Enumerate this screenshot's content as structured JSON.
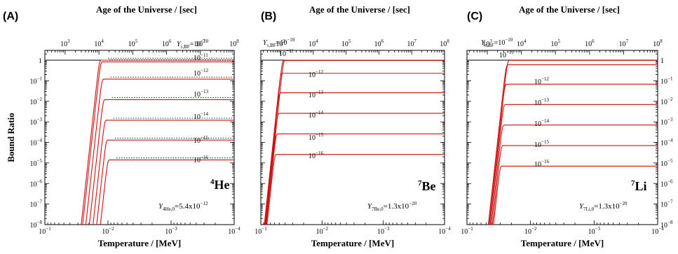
{
  "chart_data": [
    {
      "type": "line",
      "panel": "(A)",
      "nucleus_mass": "4",
      "nucleus_symbol": "He",
      "annotation": {
        "symbol": "Y",
        "subscript": "4He,0",
        "value": "=5.4x10",
        "exponent": "−12"
      },
      "xlabel": "Temperature / [MeV]",
      "x2label": "Age of the Universe / [sec]",
      "ylabel": "Bound Ratio",
      "xscale": "log",
      "xlim": [
        0.1,
        0.0001
      ],
      "yscale": "log",
      "ylim": [
        1e-08,
        3
      ],
      "x_ticks": [
        {
          "base": "10",
          "exp": "−1"
        },
        {
          "base": "10",
          "exp": "−2"
        },
        {
          "base": "10",
          "exp": "−3"
        },
        {
          "base": "10",
          "exp": "−4"
        }
      ],
      "y_ticks": [
        {
          "base": "1",
          "exp": ""
        },
        {
          "base": "10",
          "exp": "−1"
        },
        {
          "base": "10",
          "exp": "−2"
        },
        {
          "base": "10",
          "exp": "−3"
        },
        {
          "base": "10",
          "exp": "−4"
        },
        {
          "base": "10",
          "exp": "−5"
        },
        {
          "base": "10",
          "exp": "−6"
        },
        {
          "base": "10",
          "exp": "−7"
        },
        {
          "base": "10",
          "exp": "−8"
        }
      ],
      "x2_ticks": [
        {
          "base": "10",
          "exp": "3"
        },
        {
          "base": "10",
          "exp": "4"
        },
        {
          "base": "10",
          "exp": "5"
        },
        {
          "base": "10",
          "exp": "6"
        },
        {
          "base": "10",
          "exp": "7"
        },
        {
          "base": "10",
          "exp": "8"
        }
      ],
      "reference_line": 1,
      "dotted_lines": true,
      "series": [
        {
          "label": {
            "head": "Y",
            "sub": "τ,BF",
            "mid": "=10",
            "exp": "−10"
          },
          "onset_T": 0.0138,
          "plateau": 1.0
        },
        {
          "label": {
            "head": "",
            "sub": "",
            "mid": "10",
            "exp": "−11"
          },
          "onset_T": 0.0132,
          "plateau": 0.83
        },
        {
          "label": {
            "head": "",
            "sub": "",
            "mid": "10",
            "exp": "−12"
          },
          "onset_T": 0.0126,
          "plateau": 0.12
        },
        {
          "label": {
            "head": "",
            "sub": "",
            "mid": "10",
            "exp": "−13"
          },
          "onset_T": 0.012,
          "plateau": 0.012
        },
        {
          "label": {
            "head": "",
            "sub": "",
            "mid": "10",
            "exp": "−14"
          },
          "onset_T": 0.0114,
          "plateau": 0.0012
        },
        {
          "label": {
            "head": "",
            "sub": "",
            "mid": "10",
            "exp": "−15"
          },
          "onset_T": 0.0108,
          "plateau": 0.00013
        },
        {
          "label": {
            "head": "",
            "sub": "",
            "mid": "10",
            "exp": "−16"
          },
          "onset_T": 0.0102,
          "plateau": 1.4e-05
        }
      ]
    },
    {
      "type": "line",
      "panel": "(B)",
      "nucleus_mass": "7",
      "nucleus_symbol": "Be",
      "annotation": {
        "symbol": "Y",
        "subscript": "7Be,0",
        "value": "=1.3x10",
        "exponent": "−20"
      },
      "xlabel": "Temperature / [MeV]",
      "x2label": "Age of the Universe / [sec]",
      "xscale": "log",
      "xlim": [
        0.1,
        0.0001
      ],
      "yscale": "log",
      "ylim": [
        1e-08,
        3
      ],
      "x_ticks": [
        {
          "base": "10",
          "exp": "−1"
        },
        {
          "base": "10",
          "exp": "−2"
        },
        {
          "base": "10",
          "exp": "−3"
        },
        {
          "base": "10",
          "exp": "−4"
        }
      ],
      "x2_ticks": [
        {
          "base": "10",
          "exp": "3"
        },
        {
          "base": "10",
          "exp": "4"
        },
        {
          "base": "10",
          "exp": "5"
        },
        {
          "base": "10",
          "exp": "6"
        },
        {
          "base": "10",
          "exp": "7"
        },
        {
          "base": "10",
          "exp": "8"
        }
      ],
      "reference_line": 1,
      "dotted_lines": false,
      "series": [
        {
          "label": {
            "head": "Y",
            "sub": "τ,BF",
            "mid": "=10",
            "exp": "−10"
          },
          "onset_T": 0.043,
          "plateau": 1.0
        },
        {
          "label": {
            "head": "",
            "sub": "",
            "mid": "10",
            "exp": "−11"
          },
          "onset_T": 0.045,
          "plateau": 0.97
        },
        {
          "label": {
            "head": "",
            "sub": "",
            "mid": "10",
            "exp": "−12"
          },
          "onset_T": 0.048,
          "plateau": 0.23
        },
        {
          "label": {
            "head": "",
            "sub": "",
            "mid": "10",
            "exp": "−13"
          },
          "onset_T": 0.051,
          "plateau": 0.026
        },
        {
          "label": {
            "head": "",
            "sub": "",
            "mid": "10",
            "exp": "−14"
          },
          "onset_T": 0.054,
          "plateau": 0.0026
        },
        {
          "label": {
            "head": "",
            "sub": "",
            "mid": "10",
            "exp": "−15"
          },
          "onset_T": 0.057,
          "plateau": 0.00026
        },
        {
          "label": {
            "head": "",
            "sub": "",
            "mid": "10",
            "exp": "−16"
          },
          "onset_T": 0.06,
          "plateau": 2.6e-05
        }
      ]
    },
    {
      "type": "line",
      "panel": "(C)",
      "nucleus_mass": "7",
      "nucleus_symbol": "Li",
      "annotation": {
        "symbol": "Y",
        "subscript": "7Li,0",
        "value": "=1.3x10",
        "exponent": "−20"
      },
      "xlabel": "Temperature / [MeV]",
      "x2label": "Age of the Universe / [sec]",
      "xscale": "log",
      "xlim": [
        0.1,
        0.0001
      ],
      "yscale": "log",
      "ylim": [
        1e-08,
        3
      ],
      "x_ticks": [
        {
          "base": "10",
          "exp": "−1"
        },
        {
          "base": "10",
          "exp": "−2"
        },
        {
          "base": "10",
          "exp": "−3"
        },
        {
          "base": "10",
          "exp": "−4"
        }
      ],
      "x2_ticks": [
        {
          "base": "10",
          "exp": "3"
        },
        {
          "base": "10",
          "exp": "4"
        },
        {
          "base": "10",
          "exp": "5"
        },
        {
          "base": "10",
          "exp": "6"
        },
        {
          "base": "10",
          "exp": "7"
        },
        {
          "base": "10",
          "exp": "8"
        }
      ],
      "y2_ticks": [
        {
          "base": "1",
          "exp": ""
        },
        {
          "base": "10",
          "exp": "−1"
        },
        {
          "base": "10",
          "exp": "−2"
        },
        {
          "base": "10",
          "exp": "−3"
        },
        {
          "base": "10",
          "exp": "−4"
        },
        {
          "base": "10",
          "exp": "−5"
        },
        {
          "base": "10",
          "exp": "−6"
        },
        {
          "base": "10",
          "exp": "−7"
        },
        {
          "base": "10",
          "exp": "−8"
        }
      ],
      "reference_line": 1,
      "dotted_lines": false,
      "series": [
        {
          "label": {
            "head": "Y",
            "sub": "τ,BF",
            "mid": "=10",
            "exp": "−10"
          },
          "onset_T": 0.0232,
          "plateau": 0.98
        },
        {
          "label": {
            "head": "",
            "sub": "",
            "mid": "10",
            "exp": "−11"
          },
          "onset_T": 0.0244,
          "plateau": 0.6
        },
        {
          "label": {
            "head": "",
            "sub": "",
            "mid": "10",
            "exp": "−12"
          },
          "onset_T": 0.0256,
          "plateau": 0.068
        },
        {
          "label": {
            "head": "",
            "sub": "",
            "mid": "10",
            "exp": "−13"
          },
          "onset_T": 0.0268,
          "plateau": 0.007
        },
        {
          "label": {
            "head": "",
            "sub": "",
            "mid": "10",
            "exp": "−14"
          },
          "onset_T": 0.028,
          "plateau": 0.0007
        },
        {
          "label": {
            "head": "",
            "sub": "",
            "mid": "10",
            "exp": "−15"
          },
          "onset_T": 0.0292,
          "plateau": 7e-05
        },
        {
          "label": {
            "head": "",
            "sub": "",
            "mid": "10",
            "exp": "−16"
          },
          "onset_T": 0.0304,
          "plateau": 7e-06
        }
      ]
    }
  ],
  "colors": {
    "curve": "#cc1111",
    "axis": "#000000",
    "reference": "#000000",
    "dotted": "#000000"
  }
}
